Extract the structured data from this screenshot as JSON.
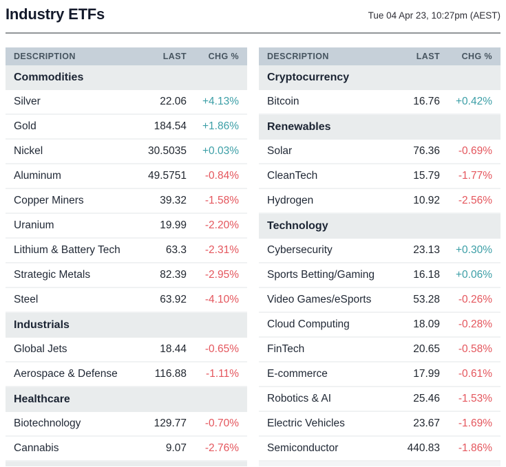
{
  "header": {
    "title": "Industry ETFs",
    "timestamp": "Tue 04 Apr 23, 10:27pm (AEST)"
  },
  "columns": {
    "description": "DESCRIPTION",
    "last": "LAST",
    "chg": "CHG %"
  },
  "colors": {
    "positive": "#3b9ea6",
    "negative": "#e4555c",
    "header_bg": "#c6d0d9",
    "section_bg": "#e9eced",
    "title_text": "#141a2b"
  },
  "tables": [
    {
      "sections": [
        {
          "name": "Commodities",
          "rows": [
            {
              "description": "Silver",
              "last": "22.06",
              "chg": "+4.13%",
              "direction": "up"
            },
            {
              "description": "Gold",
              "last": "184.54",
              "chg": "+1.86%",
              "direction": "up"
            },
            {
              "description": "Nickel",
              "last": "30.5035",
              "chg": "+0.03%",
              "direction": "up"
            },
            {
              "description": "Aluminum",
              "last": "49.5751",
              "chg": "-0.84%",
              "direction": "down"
            },
            {
              "description": "Copper Miners",
              "last": "39.32",
              "chg": "-1.58%",
              "direction": "down"
            },
            {
              "description": "Uranium",
              "last": "19.99",
              "chg": "-2.20%",
              "direction": "down"
            },
            {
              "description": "Lithium & Battery Tech",
              "last": "63.3",
              "chg": "-2.31%",
              "direction": "down"
            },
            {
              "description": "Strategic Metals",
              "last": "82.39",
              "chg": "-2.95%",
              "direction": "down"
            },
            {
              "description": "Steel",
              "last": "63.92",
              "chg": "-4.10%",
              "direction": "down"
            }
          ]
        },
        {
          "name": "Industrials",
          "rows": [
            {
              "description": "Global Jets",
              "last": "18.44",
              "chg": "-0.65%",
              "direction": "down"
            },
            {
              "description": "Aerospace & Defense",
              "last": "116.88",
              "chg": "-1.11%",
              "direction": "down"
            }
          ]
        },
        {
          "name": "Healthcare",
          "rows": [
            {
              "description": "Biotechnology",
              "last": "129.77",
              "chg": "-0.70%",
              "direction": "down"
            },
            {
              "description": "Cannabis",
              "last": "9.07",
              "chg": "-2.76%",
              "direction": "down"
            }
          ]
        }
      ]
    },
    {
      "sections": [
        {
          "name": "Cryptocurrency",
          "rows": [
            {
              "description": "Bitcoin",
              "last": "16.76",
              "chg": "+0.42%",
              "direction": "up"
            }
          ]
        },
        {
          "name": "Renewables",
          "rows": [
            {
              "description": "Solar",
              "last": "76.36",
              "chg": "-0.69%",
              "direction": "down"
            },
            {
              "description": "CleanTech",
              "last": "15.79",
              "chg": "-1.77%",
              "direction": "down"
            },
            {
              "description": "Hydrogen",
              "last": "10.92",
              "chg": "-2.56%",
              "direction": "down"
            }
          ]
        },
        {
          "name": "Technology",
          "rows": [
            {
              "description": "Cybersecurity",
              "last": "23.13",
              "chg": "+0.30%",
              "direction": "up"
            },
            {
              "description": "Sports Betting/Gaming",
              "last": "16.18",
              "chg": "+0.06%",
              "direction": "up"
            },
            {
              "description": "Video Games/eSports",
              "last": "53.28",
              "chg": "-0.26%",
              "direction": "down"
            },
            {
              "description": "Cloud Computing",
              "last": "18.09",
              "chg": "-0.28%",
              "direction": "down"
            },
            {
              "description": "FinTech",
              "last": "20.65",
              "chg": "-0.58%",
              "direction": "down"
            },
            {
              "description": "E-commerce",
              "last": "17.99",
              "chg": "-0.61%",
              "direction": "down"
            },
            {
              "description": "Robotics & AI",
              "last": "25.46",
              "chg": "-1.53%",
              "direction": "down"
            },
            {
              "description": "Electric Vehicles",
              "last": "23.67",
              "chg": "-1.69%",
              "direction": "down"
            },
            {
              "description": "Semiconductor",
              "last": "440.83",
              "chg": "-1.86%",
              "direction": "down"
            }
          ]
        }
      ]
    }
  ]
}
